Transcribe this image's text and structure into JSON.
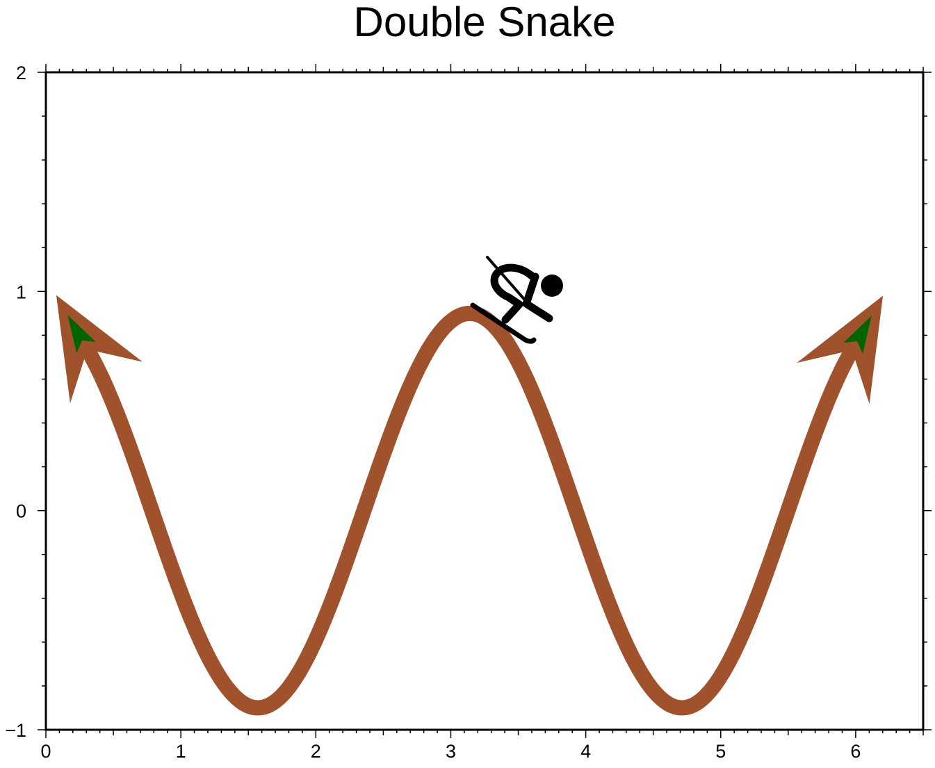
{
  "chart_data": {
    "type": "line",
    "title": "Double Snake",
    "xlabel": "",
    "ylabel": "",
    "xlim": [
      0,
      6.5
    ],
    "ylim": [
      -1,
      2
    ],
    "x_ticks": [
      0,
      1,
      2,
      3,
      4,
      5,
      6
    ],
    "y_ticks": [
      -1,
      0,
      1,
      2
    ],
    "x_tick_labels": [
      "0",
      "1",
      "2",
      "3",
      "4",
      "5",
      "6"
    ],
    "y_tick_labels": [
      "−1",
      "0",
      "1",
      "2"
    ],
    "grid": false,
    "series": [
      {
        "function": "y = -0.9 * sin(x)^2 * ... approximated: y = 0.9*cos(2x)",
        "x_start": 0.32,
        "x_end": 5.96,
        "arrowheads": "both-ends",
        "x": [
          0.32,
          0.5,
          0.75,
          1.0,
          1.25,
          1.5708,
          1.9,
          2.2,
          2.5,
          2.8,
          3.1416,
          3.45,
          3.75,
          4.0,
          4.3,
          4.7124,
          5.0,
          5.3,
          5.6,
          5.96
        ],
        "y": [
          0.72,
          0.49,
          0.06,
          -0.37,
          -0.72,
          -0.9,
          -0.71,
          -0.28,
          0.26,
          0.7,
          0.9,
          0.74,
          0.31,
          -0.13,
          -0.61,
          -0.9,
          -0.75,
          -0.35,
          0.18,
          0.72
        ]
      }
    ],
    "annotations": [
      {
        "type": "symbol",
        "icon": "skier-icon",
        "x": 3.55,
        "y": 0.97
      }
    ],
    "colors": {
      "line": "#A0522D",
      "arrow_inner": "#006400",
      "frame": "#000000"
    }
  }
}
